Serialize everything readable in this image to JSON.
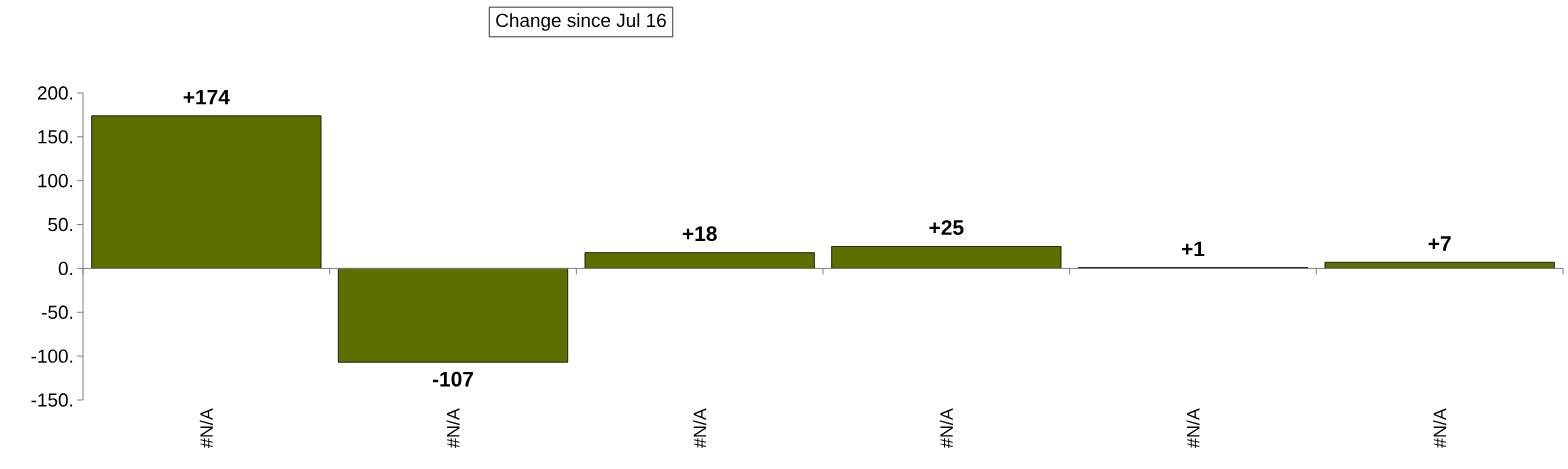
{
  "chart_data": {
    "type": "bar",
    "title": "Change since Jul 16",
    "categories": [
      "#N/A",
      "#N/A",
      "#N/A",
      "#N/A",
      "#N/A",
      "#N/A"
    ],
    "values": [
      174,
      -107,
      18,
      25,
      1,
      7
    ],
    "value_labels": [
      "+174",
      "-107",
      "+18",
      "+25",
      "+1",
      "+7"
    ],
    "color": "#5c7000",
    "ylim": [
      -150,
      200
    ],
    "yticks": [
      {
        "value": -150,
        "label": "-150."
      },
      {
        "value": -100,
        "label": "-100."
      },
      {
        "value": -50,
        "label": "-50."
      },
      {
        "value": 0,
        "label": "0."
      },
      {
        "value": 50,
        "label": "50."
      },
      {
        "value": 100,
        "label": "100."
      },
      {
        "value": 150,
        "label": "150."
      },
      {
        "value": 200,
        "label": "200."
      }
    ],
    "tick_labels": true
  }
}
